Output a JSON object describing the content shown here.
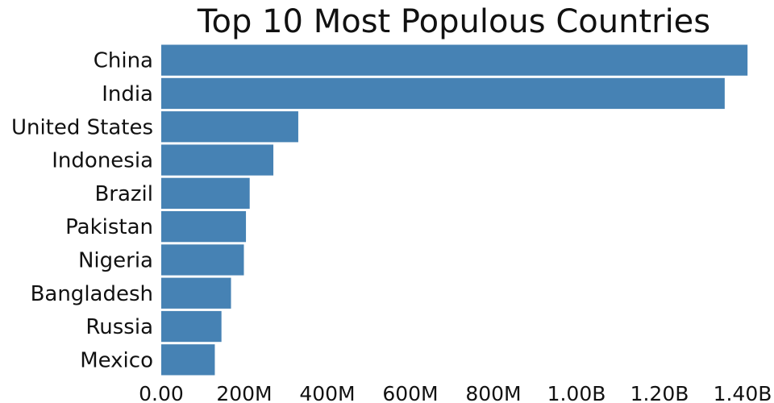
{
  "chart_data": {
    "type": "bar",
    "orientation": "horizontal",
    "title": "Top 10 Most Populous Countries",
    "xlabel": "",
    "ylabel": "",
    "categories": [
      "China",
      "India",
      "United States",
      "Indonesia",
      "Brazil",
      "Pakistan",
      "Nigeria",
      "Bangladesh",
      "Russia",
      "Mexico"
    ],
    "values": [
      1412000000,
      1357000000,
      330000000,
      270000000,
      213000000,
      204000000,
      199000000,
      168000000,
      145000000,
      129000000
    ],
    "xlim": [
      0,
      1400000000
    ],
    "xticks": [
      0,
      200000000,
      400000000,
      600000000,
      800000000,
      1000000000,
      1200000000,
      1400000000
    ],
    "xtick_labels": [
      "0.00",
      "200M",
      "400M",
      "600M",
      "800M",
      "1.00B",
      "1.20B",
      "1.40B"
    ],
    "grid": false,
    "legend": "none",
    "bar_color": "#4682b4"
  }
}
